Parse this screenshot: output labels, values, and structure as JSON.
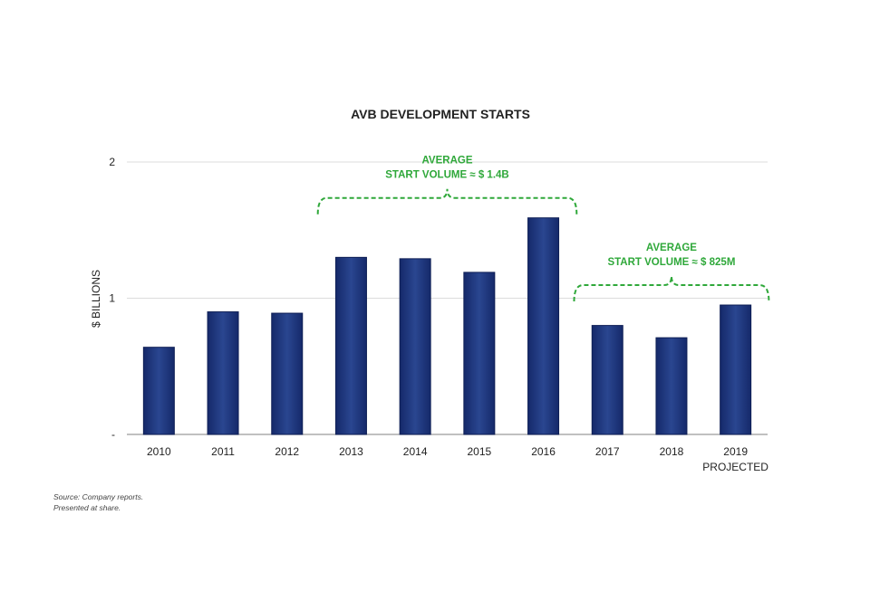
{
  "chart_data": {
    "type": "bar",
    "title": "AVB DEVELOPMENT STARTS",
    "xlabel": "",
    "ylabel": "$ BILLIONS",
    "categories": [
      "2010",
      "2011",
      "2012",
      "2013",
      "2014",
      "2015",
      "2016",
      "2017",
      "2018",
      "2019"
    ],
    "category_sublabels": [
      "",
      "",
      "",
      "",
      "",
      "",
      "",
      "",
      "",
      "PROJECTED"
    ],
    "values": [
      0.64,
      0.9,
      0.89,
      1.3,
      1.29,
      1.19,
      1.59,
      0.8,
      0.71,
      0.95
    ],
    "ylim": [
      0,
      2
    ],
    "yticks": [
      {
        "value": 0,
        "label": "-"
      },
      {
        "value": 1,
        "label": "1"
      },
      {
        "value": 2,
        "label": "2"
      }
    ],
    "grid": true,
    "bar_color": "#1f3a7e",
    "annotations": [
      {
        "lines": [
          "AVERAGE",
          "START VOLUME ≈ $ 1.4B"
        ],
        "from": "2013",
        "to": "2016",
        "color": "#2fa83a"
      },
      {
        "lines": [
          "AVERAGE",
          "START VOLUME ≈ $ 825M"
        ],
        "from": "2017",
        "to": "2019",
        "color": "#2fa83a"
      }
    ]
  },
  "source": {
    "line1": "Source:  Company reports.",
    "line2": "Presented at share."
  }
}
